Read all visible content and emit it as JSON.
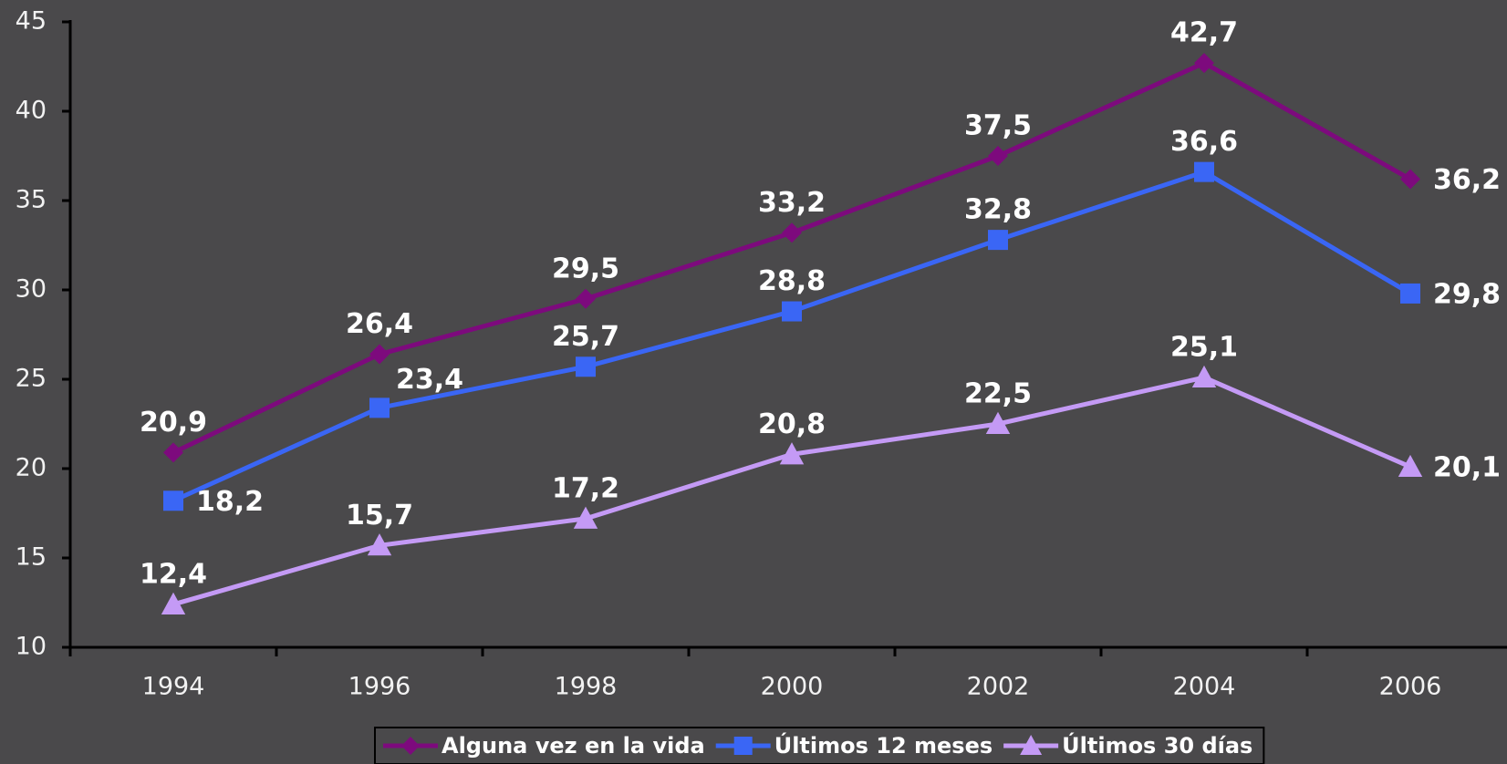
{
  "chart_data": {
    "type": "line",
    "categories": [
      "1994",
      "1996",
      "1998",
      "2000",
      "2002",
      "2004",
      "2006"
    ],
    "ylim": [
      10,
      45
    ],
    "yticks": [
      10,
      15,
      20,
      25,
      30,
      35,
      40,
      45
    ],
    "grid": false,
    "legend": "bottom",
    "series": [
      {
        "name": "Alguna vez en la vida",
        "color": "#7d0a7d",
        "marker": "diamond",
        "values": [
          20.9,
          26.4,
          29.5,
          33.2,
          37.5,
          42.7,
          36.2
        ],
        "value_labels": [
          "20,9",
          "26,4",
          "29,5",
          "33,2",
          "37,5",
          "42,7",
          "36,2"
        ]
      },
      {
        "name": "Últimos 12 meses",
        "color": "#3a66f5",
        "marker": "square",
        "values": [
          18.2,
          23.4,
          25.7,
          28.8,
          32.8,
          36.6,
          29.8
        ],
        "value_labels": [
          "18,2",
          "23,4",
          "25,7",
          "28,8",
          "32,8",
          "36,6",
          "29,8"
        ]
      },
      {
        "name": "Últimos 30 días",
        "color": "#c49af5",
        "marker": "triangle",
        "values": [
          12.4,
          15.7,
          17.2,
          20.8,
          22.5,
          25.1,
          20.1
        ],
        "value_labels": [
          "12,4",
          "15,7",
          "17,2",
          "20,8",
          "22,5",
          "25,1",
          "20,1"
        ]
      }
    ]
  }
}
